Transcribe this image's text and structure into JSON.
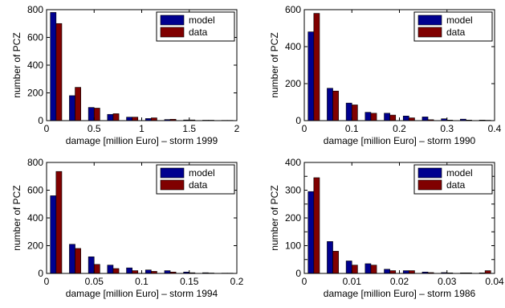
{
  "chart_data": [
    {
      "type": "bar",
      "title": "",
      "xlabel": "damage [million Euro] – storm 1999",
      "ylabel": "number of PCZ",
      "xlim": [
        0,
        2
      ],
      "ylim": [
        0,
        800
      ],
      "xticks": [
        0,
        0.5,
        1,
        1.5,
        2
      ],
      "xtick_labels": [
        "0",
        "0.5",
        "1",
        "1.5",
        "2"
      ],
      "yticks": [
        0,
        200,
        400,
        600,
        800
      ],
      "ytick_labels": [
        "0",
        "200",
        "400",
        "600",
        "800"
      ],
      "x": [
        0.1,
        0.3,
        0.5,
        0.7,
        0.9,
        1.1,
        1.3,
        1.5,
        1.7,
        1.9
      ],
      "series": [
        {
          "name": "model",
          "color": "#00008f",
          "values": [
            780,
            180,
            95,
            45,
            25,
            15,
            8,
            5,
            3,
            2
          ]
        },
        {
          "name": "data",
          "color": "#800000",
          "values": [
            700,
            240,
            90,
            50,
            25,
            20,
            10,
            5,
            3,
            2
          ]
        }
      ],
      "legend": "top-right"
    },
    {
      "type": "bar",
      "title": "",
      "xlabel": "damage [million Euro] – storm 1990",
      "ylabel": "number of PCZ",
      "xlim": [
        0,
        0.4
      ],
      "ylim": [
        0,
        600
      ],
      "xticks": [
        0,
        0.1,
        0.2,
        0.3,
        0.4
      ],
      "xtick_labels": [
        "0",
        "0.1",
        "0.2",
        "0.3",
        "0.4"
      ],
      "yticks": [
        0,
        200,
        400,
        600
      ],
      "ytick_labels": [
        "0",
        "200",
        "400",
        "600"
      ],
      "x": [
        0.02,
        0.06,
        0.1,
        0.14,
        0.18,
        0.22,
        0.26,
        0.3,
        0.34,
        0.38
      ],
      "series": [
        {
          "name": "model",
          "color": "#00008f",
          "values": [
            480,
            175,
            95,
            45,
            40,
            25,
            20,
            10,
            8,
            3
          ]
        },
        {
          "name": "data",
          "color": "#800000",
          "values": [
            580,
            160,
            85,
            40,
            30,
            15,
            5,
            3,
            3,
            2
          ]
        }
      ],
      "legend": "top-right"
    },
    {
      "type": "bar",
      "title": "",
      "xlabel": "damage [million Euro] – storm 1994",
      "ylabel": "number of PCZ",
      "xlim": [
        0,
        0.2
      ],
      "ylim": [
        0,
        800
      ],
      "xticks": [
        0,
        0.05,
        0.1,
        0.15,
        0.2
      ],
      "xtick_labels": [
        "0",
        "0.05",
        "0.1",
        "0.15",
        "0.2"
      ],
      "yticks": [
        0,
        200,
        400,
        600,
        800
      ],
      "ytick_labels": [
        "0",
        "200",
        "400",
        "600",
        "800"
      ],
      "x": [
        0.01,
        0.03,
        0.05,
        0.07,
        0.09,
        0.11,
        0.13,
        0.15,
        0.17,
        0.19
      ],
      "series": [
        {
          "name": "model",
          "color": "#00008f",
          "values": [
            560,
            210,
            120,
            60,
            40,
            25,
            20,
            10,
            5,
            2
          ]
        },
        {
          "name": "data",
          "color": "#800000",
          "values": [
            735,
            180,
            65,
            35,
            20,
            15,
            10,
            5,
            3,
            2
          ]
        }
      ],
      "legend": "top-right"
    },
    {
      "type": "bar",
      "title": "",
      "xlabel": "damage [million Euro] – storm 1986",
      "ylabel": "number of PCZ",
      "xlim": [
        0,
        0.04
      ],
      "ylim": [
        0,
        400
      ],
      "xticks": [
        0,
        0.01,
        0.02,
        0.03,
        0.04
      ],
      "xtick_labels": [
        "0",
        "0.01",
        "0.02",
        "0.03",
        "0.04"
      ],
      "yticks": [
        0,
        50,
        100,
        150,
        200,
        250,
        300,
        350,
        400
      ],
      "ytick_labels": [
        "0",
        "",
        "100",
        "",
        "200",
        "",
        "300",
        "",
        "400"
      ],
      "x": [
        0.002,
        0.006,
        0.01,
        0.014,
        0.018,
        0.022,
        0.026,
        0.03,
        0.034,
        0.038
      ],
      "series": [
        {
          "name": "model",
          "color": "#00008f",
          "values": [
            295,
            115,
            45,
            35,
            15,
            10,
            5,
            3,
            2,
            2
          ]
        },
        {
          "name": "data",
          "color": "#800000",
          "values": [
            345,
            80,
            30,
            30,
            10,
            10,
            3,
            2,
            2,
            10
          ]
        }
      ],
      "legend": "top-right"
    }
  ]
}
